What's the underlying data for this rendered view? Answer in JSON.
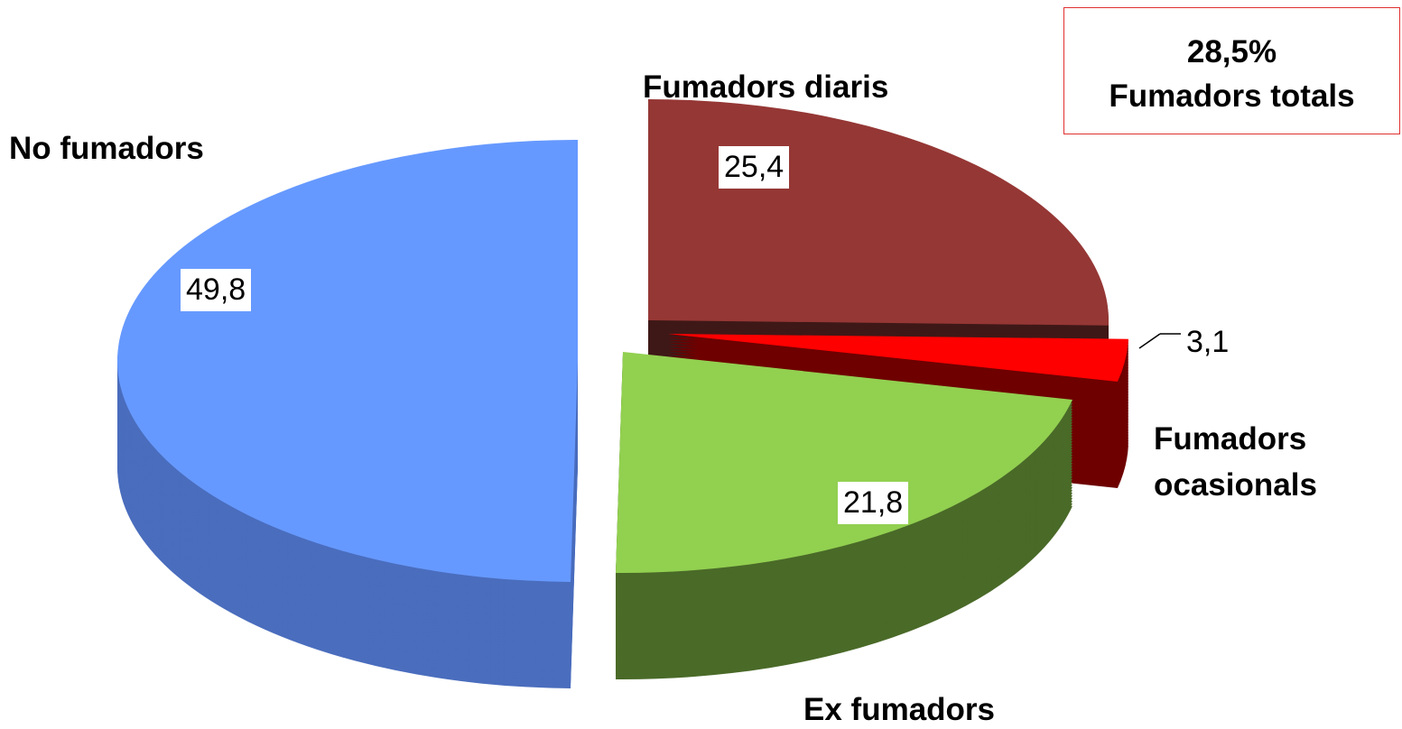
{
  "chart_data": {
    "type": "pie",
    "categories": [
      "Fumadors diaris",
      "Fumadors ocasionals",
      "Ex fumadors",
      "No fumadors"
    ],
    "values": [
      25.4,
      3.1,
      21.8,
      49.8
    ],
    "value_labels": [
      "25,4",
      "3,1",
      "21,8",
      "49,8"
    ],
    "colors": [
      "#953735",
      "#ff0000",
      "#92d050",
      "#6699ff"
    ],
    "side_colors": [
      "#3e1817",
      "#6e0000",
      "#4a6a28",
      "#4a6dbd"
    ],
    "annotation": [
      "28,5%",
      "Fumadors totals"
    ]
  }
}
